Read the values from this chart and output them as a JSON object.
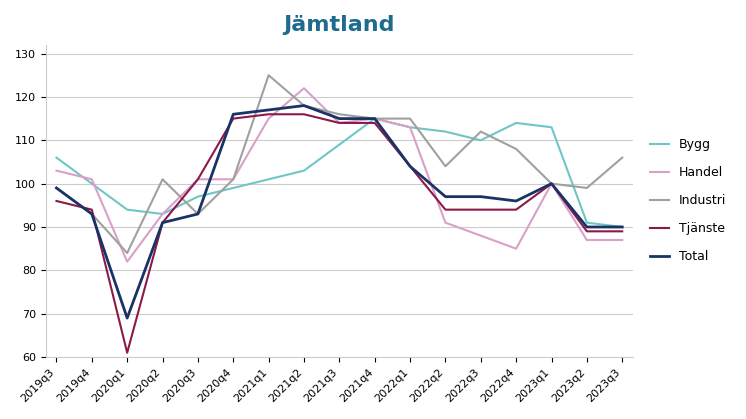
{
  "title": "Jämtland",
  "title_color": "#1f6b8e",
  "categories": [
    "2019q3",
    "2019q4",
    "2020q1",
    "2020q2",
    "2020q3",
    "2020q4",
    "2021q1",
    "2021q2",
    "2021q3",
    "2021q4",
    "2022q1",
    "2022q2",
    "2022q3",
    "2022q4",
    "2023q1",
    "2023q2",
    "2023q3"
  ],
  "series": {
    "Bygg": {
      "values": [
        106,
        100,
        94,
        93,
        97,
        99,
        101,
        103,
        109,
        115,
        113,
        112,
        110,
        114,
        113,
        91,
        90
      ],
      "color": "#70c6c6",
      "linewidth": 1.5
    },
    "Handel": {
      "values": [
        103,
        101,
        82,
        93,
        101,
        101,
        115,
        122,
        114,
        115,
        113,
        91,
        88,
        85,
        100,
        87,
        87
      ],
      "color": "#d9a0c8",
      "linewidth": 1.5
    },
    "Industri": {
      "values": [
        99,
        93,
        84,
        101,
        93,
        101,
        125,
        118,
        116,
        115,
        115,
        104,
        112,
        108,
        100,
        99,
        106
      ],
      "color": "#a0a0a0",
      "linewidth": 1.5
    },
    "Tjänste": {
      "values": [
        96,
        94,
        61,
        91,
        101,
        115,
        116,
        116,
        114,
        114,
        104,
        94,
        94,
        94,
        100,
        89,
        89
      ],
      "color": "#8b1a4a",
      "linewidth": 1.5
    },
    "Total": {
      "values": [
        99,
        93,
        69,
        91,
        93,
        116,
        117,
        118,
        115,
        115,
        104,
        97,
        97,
        96,
        100,
        90,
        90
      ],
      "color": "#1a3366",
      "linewidth": 2.0
    }
  },
  "ylim": [
    60,
    132
  ],
  "yticks": [
    60,
    70,
    80,
    90,
    100,
    110,
    120,
    130
  ],
  "background_color": "#ffffff",
  "grid_color": "#cccccc",
  "legend_order": [
    "Bygg",
    "Handel",
    "Industri",
    "Tjänste",
    "Total"
  ],
  "title_fontsize": 16,
  "tick_fontsize": 8,
  "legend_fontsize": 9
}
